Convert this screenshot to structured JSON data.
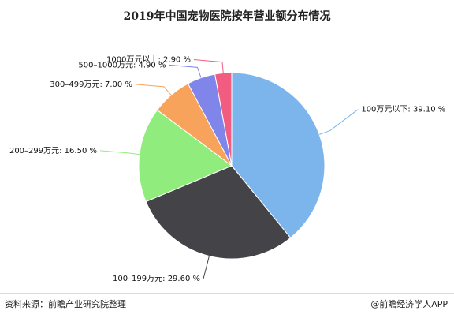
{
  "chart_data": {
    "type": "pie",
    "title": "2019年中国宠物医院按年营业额分布情况",
    "slices": [
      {
        "label": "100万元以下",
        "value": 39.1,
        "display": "100万元以下: 39.10 %",
        "color": "#7cb5ec"
      },
      {
        "label": "100-199万元",
        "value": 29.6,
        "display": "100–199万元: 29.60 %",
        "color": "#434348"
      },
      {
        "label": "200-299万元",
        "value": 16.5,
        "display": "200–299万元: 16.50 %",
        "color": "#90ed7d"
      },
      {
        "label": "300-499万元",
        "value": 7.0,
        "display": "300–499万元: 7.00 %",
        "color": "#f7a35c"
      },
      {
        "label": "500-1000万元",
        "value": 4.9,
        "display": "500–1000万元: 4.90 %",
        "color": "#8085e9"
      },
      {
        "label": "1000万元以上",
        "value": 2.9,
        "display": "1000万元以上: 2.90 %",
        "color": "#f15c80"
      }
    ]
  },
  "footer": {
    "source": "资料来源：前瞻产业研究院整理",
    "credit": "@前瞻经济学人APP"
  }
}
